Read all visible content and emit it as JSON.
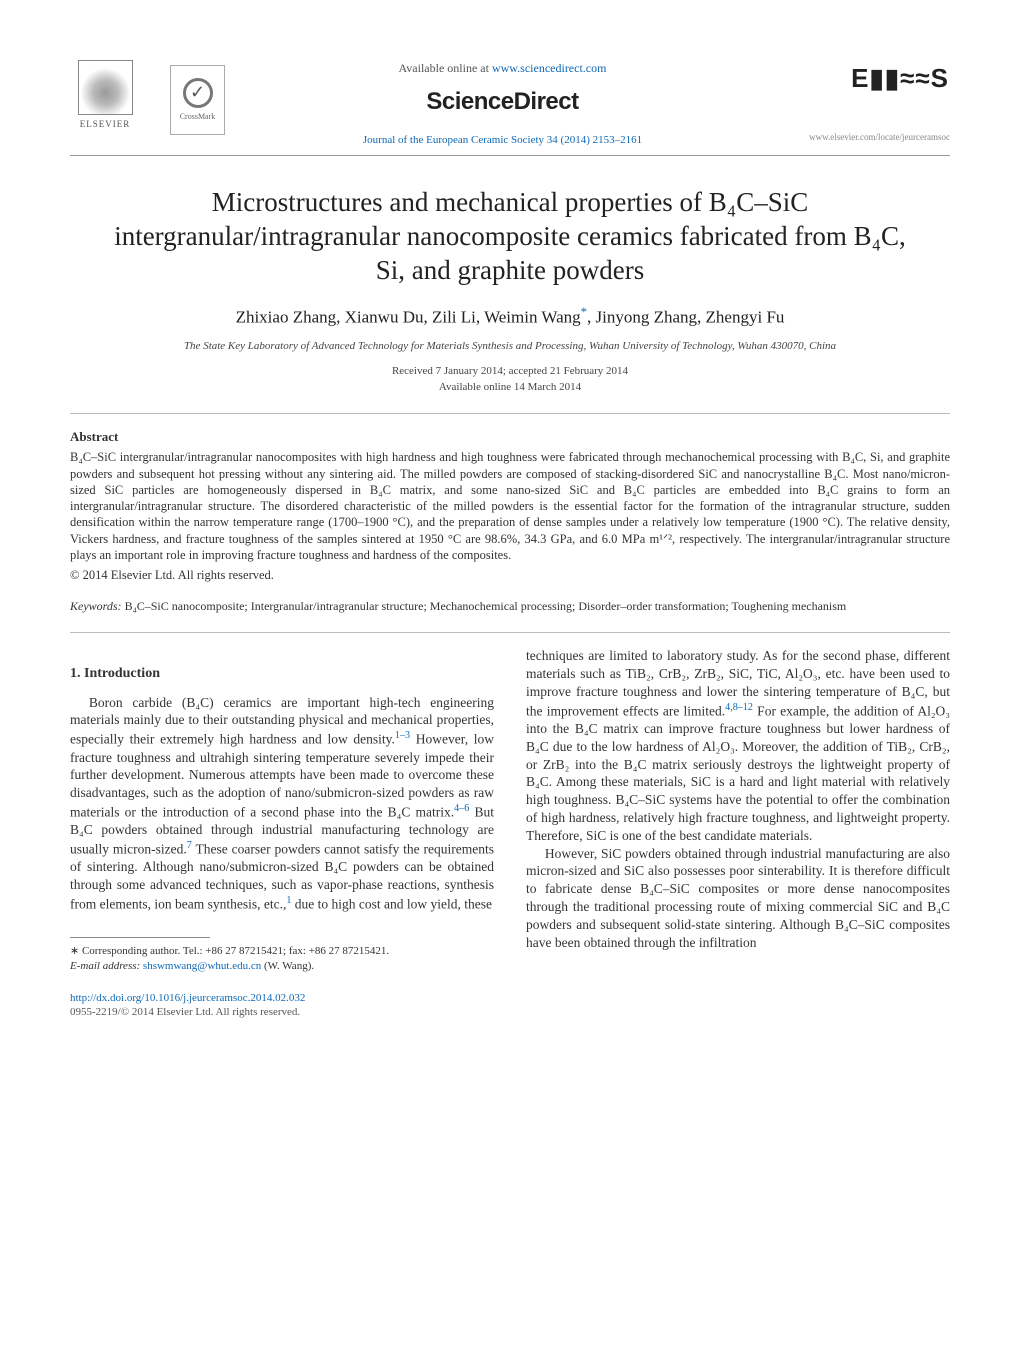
{
  "header": {
    "elsevier_label": "ELSEVIER",
    "crossmark_label": "CrossMark",
    "available_prefix": "Available online at ",
    "available_link": "www.sciencedirect.com",
    "sciencedirect": "ScienceDirect",
    "journal_ref": "Journal of the European Ceramic Society 34 (2014) 2153–2161",
    "journal_logo_text": "E▮▮≈≈S",
    "journal_url": "www.elsevier.com/locate/jeurceramsoc"
  },
  "title": "Microstructures and mechanical properties of B₄C–SiC intergranular/intragranular nanocomposite ceramics fabricated from B₄C, Si, and graphite powders",
  "authors_html": "Zhixiao Zhang, Xianwu Du, Zili Li, Weimin Wang",
  "authors_after_corr": ", Jinyong Zhang, Zhengyi Fu",
  "corr_mark": "*",
  "affiliation": "The State Key Laboratory of Advanced Technology for Materials Synthesis and Processing, Wuhan University of Technology, Wuhan 430070, China",
  "dates": {
    "received": "Received 7 January 2014; accepted 21 February 2014",
    "online": "Available online 14 March 2014"
  },
  "abstract_head": "Abstract",
  "abstract_body": "B₄C–SiC intergranular/intragranular nanocomposites with high hardness and high toughness were fabricated through mechanochemical processing with B₄C, Si, and graphite powders and subsequent hot pressing without any sintering aid. The milled powders are composed of stacking-disordered SiC and nanocrystalline B₄C. Most nano/micron-sized SiC particles are homogeneously dispersed in B₄C matrix, and some nano-sized SiC and B₄C particles are embedded into B₄C grains to form an intergranular/intragranular structure. The disordered characteristic of the milled powders is the essential factor for the formation of the intragranular structure, sudden densification within the narrow temperature range (1700–1900 °C), and the preparation of dense samples under a relatively low temperature (1900 °C). The relative density, Vickers hardness, and fracture toughness of the samples sintered at 1950 °C are 98.6%, 34.3 GPa, and 6.0 MPa m¹ᐟ², respectively. The intergranular/intragranular structure plays an important role in improving fracture toughness and hardness of the composites.",
  "copyright": "© 2014 Elsevier Ltd. All rights reserved.",
  "keywords_label": "Keywords:",
  "keywords": "B₄C–SiC nanocomposite; Intergranular/intragranular structure; Mechanochemical processing; Disorder–order transformation; Toughening mechanism",
  "section1_head": "1.  Introduction",
  "col1": {
    "p1a": "Boron carbide (B₄C) ceramics are important high-tech engineering materials mainly due to their outstanding physical and mechanical properties, especially their extremely high hardness and low density.",
    "c1": "1–3",
    "p1b": " However, low fracture toughness and ultrahigh sintering temperature severely impede their further development. Numerous attempts have been made to overcome these disadvantages, such as the adoption of nano/submicron-sized powders as raw materials or the introduction of a second phase into the B₄C matrix.",
    "c2": "4–6",
    "p1c": " But B₄C powders obtained through industrial manufacturing technology are usually micron-sized.",
    "c3": "7",
    "p1d": " These coarser powders cannot satisfy the requirements of sintering. Although nano/submicron-sized B₄C powders can be obtained through some advanced techniques, such as vapor-phase reactions, synthesis from elements, ion beam synthesis, etc.,",
    "c4": "1",
    "p1e": " due to high cost and low yield, these"
  },
  "col2": {
    "p1a": "techniques are limited to laboratory study. As for the second phase, different materials such as TiB₂, CrB₂, ZrB₂, SiC, TiC, Al₂O₃, etc. have been used to improve fracture toughness and lower the sintering temperature of B₄C, but the improvement effects are limited.",
    "c1": "4,8–12",
    "p1b": " For example, the addition of Al₂O₃ into the B₄C matrix can improve fracture toughness but lower hardness of B₄C due to the low hardness of Al₂O₃. Moreover, the addition of TiB₂, CrB₂, or ZrB₂ into the B₄C matrix seriously destroys the lightweight property of B₄C. Among these materials, SiC is a hard and light material with relatively high toughness. B₄C–SiC systems have the potential to offer the combination of high hardness, relatively high fracture toughness, and lightweight property. Therefore, SiC is one of the best candidate materials.",
    "p2": "However, SiC powders obtained through industrial manufacturing are also micron-sized and SiC also possesses poor sinterability. It is therefore difficult to fabricate dense B₄C–SiC composites or more dense nanocomposites through the traditional processing route of mixing commercial SiC and B₄C powders and subsequent solid-state sintering. Although B₄C–SiC composites have been obtained through the infiltration"
  },
  "footnote": {
    "corr_label": "∗ Corresponding author. Tel.: +86 27 87215421; fax: +86 27 87215421.",
    "email_label": "E-mail address:",
    "email": "shswmwang@whut.edu.cn",
    "email_who": "(W. Wang)."
  },
  "doi": {
    "link": "http://dx.doi.org/10.1016/j.jeurceramsoc.2014.02.032",
    "issn": "0955-2219/© 2014 Elsevier Ltd. All rights reserved."
  },
  "colors": {
    "link": "#0f68b5",
    "text": "#333333",
    "rule": "#999999"
  }
}
